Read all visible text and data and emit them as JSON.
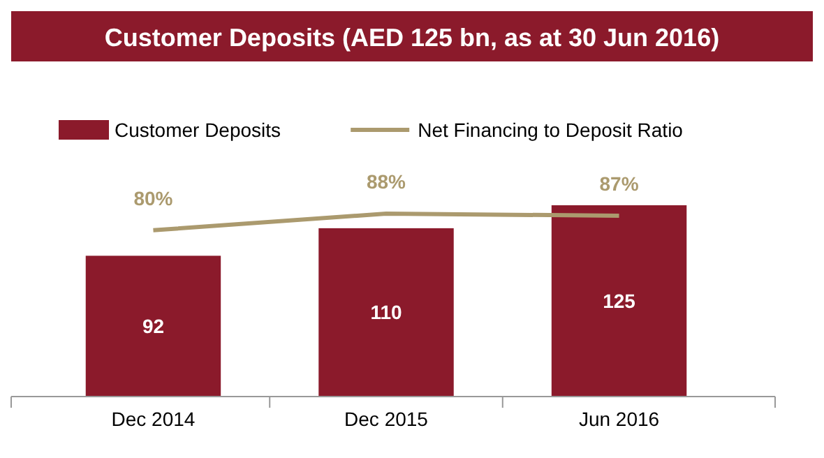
{
  "chart_data": {
    "type": "bar",
    "title": "Customer Deposits (AED 125 bn, as at 30 Jun 2016)",
    "categories": [
      "Dec 2014",
      "Dec 2015",
      "Jun 2016"
    ],
    "series": [
      {
        "name": "Customer Deposits",
        "color": "#8b1a2b",
        "values": [
          92,
          110,
          125
        ]
      },
      {
        "name": "Net Financing to Deposit Ratio",
        "type": "line",
        "axis": "y2",
        "color": "#ab9a6e",
        "values": [
          80,
          88,
          87
        ],
        "value_labels": [
          "80%",
          "88%",
          "87%"
        ]
      }
    ],
    "data_labels": true,
    "legend": "top",
    "grid": false,
    "marker": "none",
    "line_style": "solid"
  }
}
